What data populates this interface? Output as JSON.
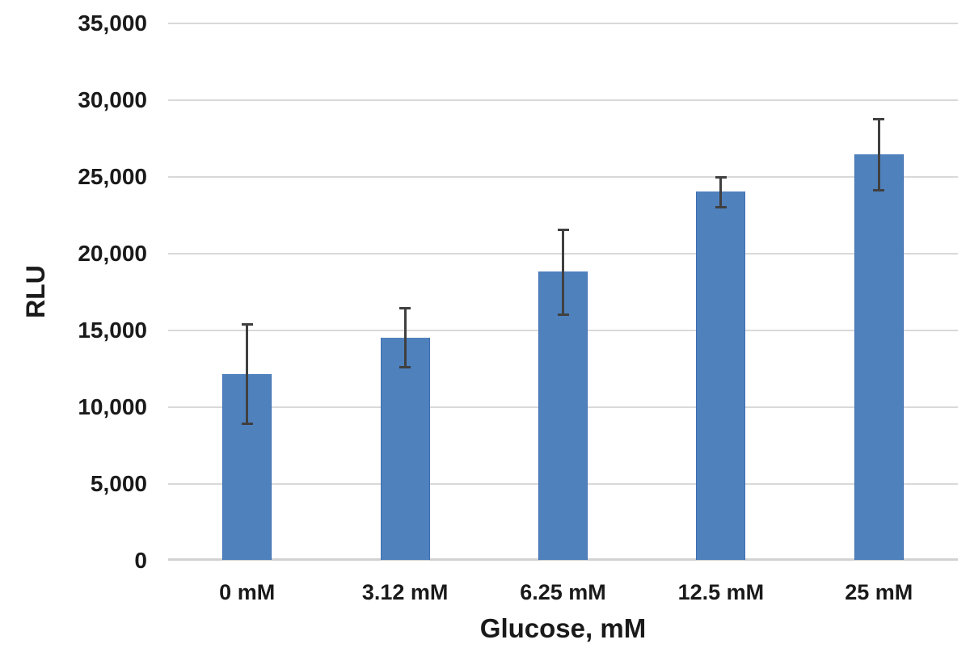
{
  "chart_data": {
    "type": "bar",
    "title": "",
    "xlabel": "Glucose, mM",
    "ylabel": "RLU",
    "categories": [
      "0 mM",
      "3.12 mM",
      "6.25 mM",
      "12.5 mM",
      "25 mM"
    ],
    "values": [
      12100,
      14500,
      18800,
      24000,
      26400
    ],
    "error_high": [
      15400,
      16500,
      21600,
      25000,
      28800
    ],
    "error_low": [
      8900,
      12600,
      16000,
      23000,
      24100
    ],
    "ylim": [
      0,
      35000
    ],
    "ytick_values": [
      0,
      5000,
      10000,
      15000,
      20000,
      25000,
      30000,
      35000
    ],
    "ytick_labels": [
      "0",
      "5,000",
      "10,000",
      "15,000",
      "20,000",
      "25,000",
      "30,000",
      "35,000"
    ],
    "grid": true,
    "legend": "none",
    "colors": {
      "bar_fill": "#4F81BD",
      "bar_border": "#3E6FB2",
      "error_bar": "#404040",
      "gridline": "#D9D9D9",
      "axis_line": "#D2D2D2",
      "text": "#1A1A1A"
    }
  }
}
